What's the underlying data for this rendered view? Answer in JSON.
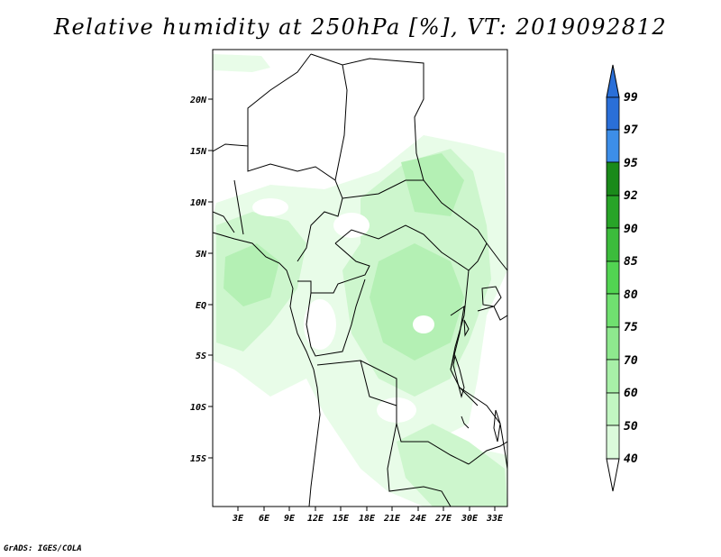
{
  "title": "Relative humidity at 250hPa [%], VT: 2019092812",
  "footer": "GrADS: IGES/COLA",
  "map": {
    "lat_labels": [
      "20N",
      "15N",
      "10N",
      "5N",
      "EQ",
      "5S",
      "10S",
      "15S"
    ],
    "lon_labels": [
      "3E",
      "6E",
      "9E",
      "12E",
      "15E",
      "18E",
      "21E",
      "24E",
      "27E",
      "30E",
      "33E"
    ]
  },
  "colorbar": {
    "levels": [
      "99",
      "97",
      "95",
      "92",
      "90",
      "85",
      "80",
      "75",
      "70",
      "60",
      "50",
      "40"
    ],
    "colors": [
      "#2a6fd8",
      "#3d8ee8",
      "#1a8a1a",
      "#28a428",
      "#3cbc3c",
      "#52d452",
      "#70e070",
      "#8ee88e",
      "#a8f0a8",
      "#c2f6c2",
      "#dbfadb",
      "#f0fff0"
    ],
    "top_color": "#2a6fd8"
  },
  "chart_data": {
    "type": "heatmap",
    "title": "Relative humidity at 250hPa [%], VT: 2019092812",
    "variable": "Relative humidity at 250hPa",
    "units": "%",
    "valid_time": "2019092812",
    "lon_range": [
      0,
      34
    ],
    "lat_range": [
      -20,
      24
    ],
    "contour_levels": [
      40,
      50,
      60,
      70,
      75,
      80,
      85,
      90,
      92,
      95,
      97,
      99
    ]
  }
}
